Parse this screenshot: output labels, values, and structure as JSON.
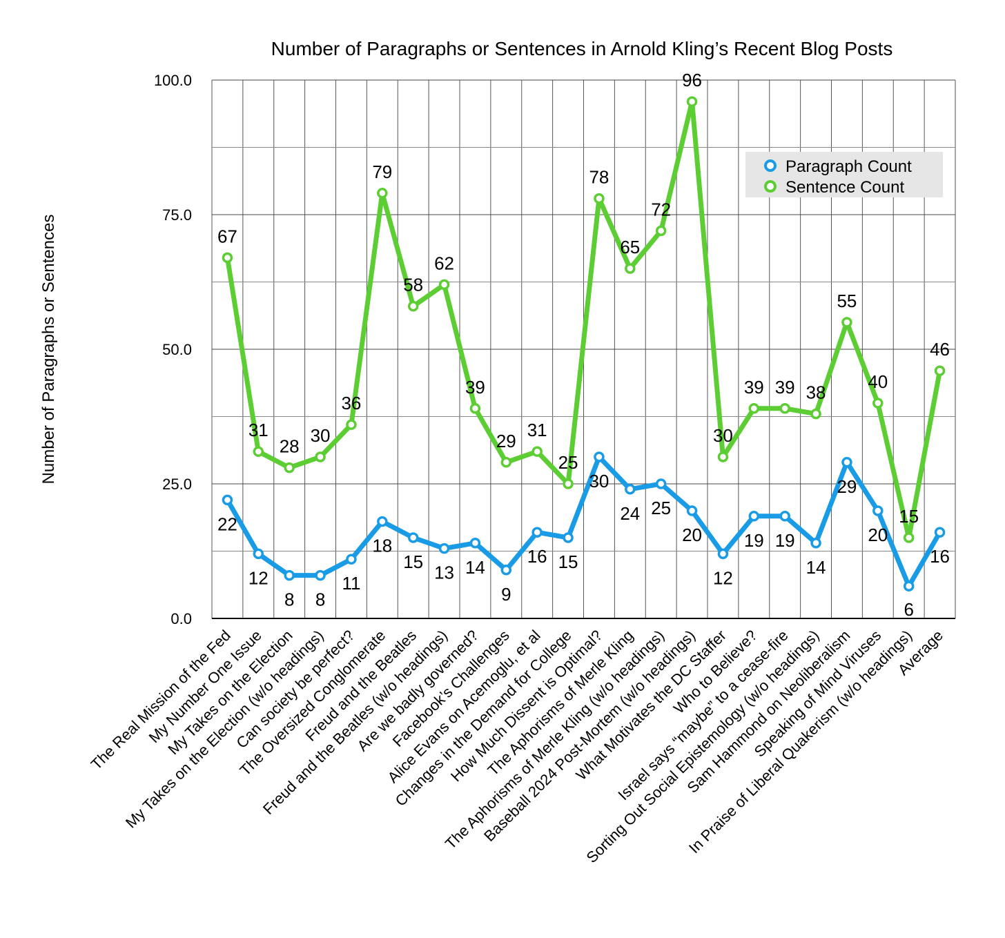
{
  "chart_data": {
    "type": "line",
    "title": "Number of Paragraphs or Sentences in Arnold Kling’s Recent Blog Posts",
    "xlabel": "",
    "ylabel": "Number of Paragraphs or Sentences",
    "ylim": [
      0,
      100
    ],
    "y_ticks": [
      "0.0",
      "25.0",
      "50.0",
      "75.0",
      "100.0"
    ],
    "grid": true,
    "legend_position": "top-right",
    "categories": [
      "The Real Mission of the Fed",
      "My Number One Issue",
      "My Takes on the Election",
      "My Takes on the Election (w/o headings)",
      "Can society be perfect?",
      "The Oversized Conglomerate",
      "Freud and the Beatles",
      "Freud and the Beatles (w/o headings)",
      "Are we badly governed?",
      "Facebook’s Challenges",
      "Alice Evans on Acemoglu, et al",
      "Changes in the Demand for College",
      "How Much Dissent is Optimal?",
      "The Aphorisms of Merle Kling",
      "The Aphorisms of Merle Kling (w/o headings)",
      "Baseball 2024 Post-Mortem (w/o headings)",
      "What Motivates the DC Staffer",
      "Who to Believe?",
      "Israel says “maybe” to a cease-fire",
      "Sorting Out Social Epistemology (w/o headings)",
      "Sam Hammond on Neoliberalism",
      "Speaking of Mind Viruses",
      "In Praise of Liberal Quakerism (w/o headings)",
      "Average"
    ],
    "series": [
      {
        "name": "Paragraph Count",
        "color": "#1a9be6",
        "values": [
          22,
          12,
          8,
          8,
          11,
          18,
          15,
          13,
          14,
          9,
          16,
          15,
          30,
          24,
          25,
          20,
          12,
          19,
          19,
          14,
          29,
          20,
          6,
          16
        ],
        "labels": [
          "22",
          "12",
          "8",
          "8",
          "11",
          "18",
          "15",
          "13",
          "14",
          "9",
          "16",
          "15",
          "30",
          "24",
          "25",
          "20",
          "12",
          "19",
          "19",
          "14",
          "29",
          "20",
          "6",
          "16"
        ]
      },
      {
        "name": "Sentence Count",
        "color": "#5ccd33",
        "values": [
          67,
          31,
          28,
          30,
          36,
          79,
          58,
          62,
          39,
          29,
          31,
          25,
          78,
          65,
          72,
          96,
          30,
          39,
          39,
          38,
          55,
          40,
          15,
          46
        ],
        "labels": [
          "67",
          "31",
          "28",
          "30",
          "36",
          "79",
          "58",
          "62",
          "39",
          "29",
          "31",
          "25",
          "78",
          "65",
          "72",
          "96",
          "30",
          "39",
          "39",
          "38",
          "55",
          "40",
          "15",
          "46"
        ]
      }
    ]
  }
}
